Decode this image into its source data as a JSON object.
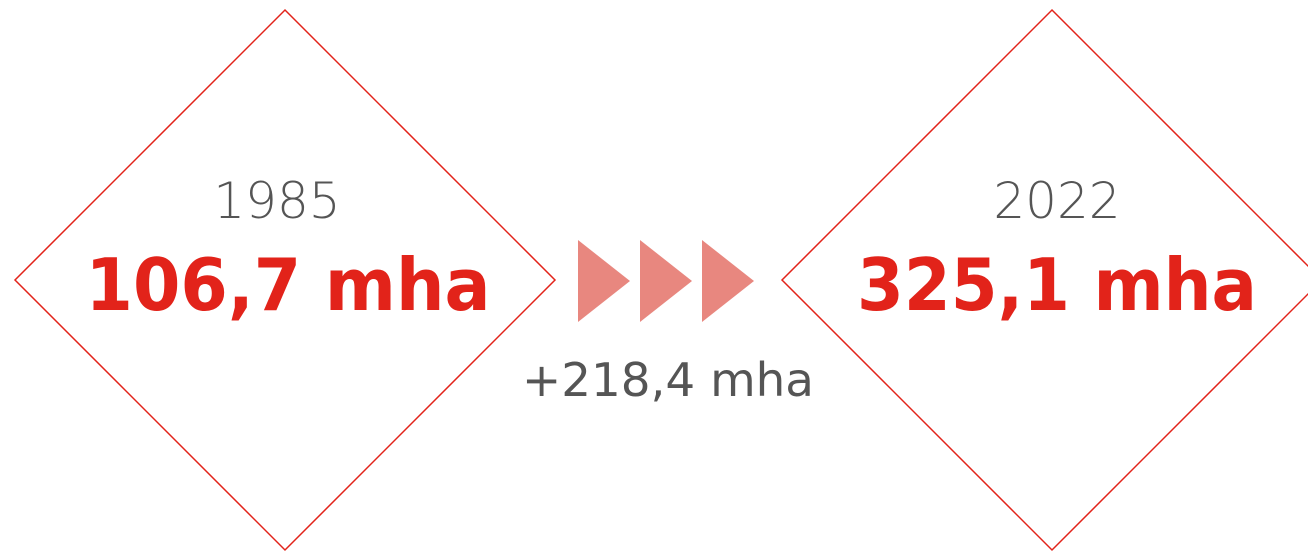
{
  "left": {
    "year": "1985",
    "value": "106,7 mha"
  },
  "right": {
    "year": "2022",
    "value": "325,1 mha"
  },
  "change": "+218,4 mha"
}
